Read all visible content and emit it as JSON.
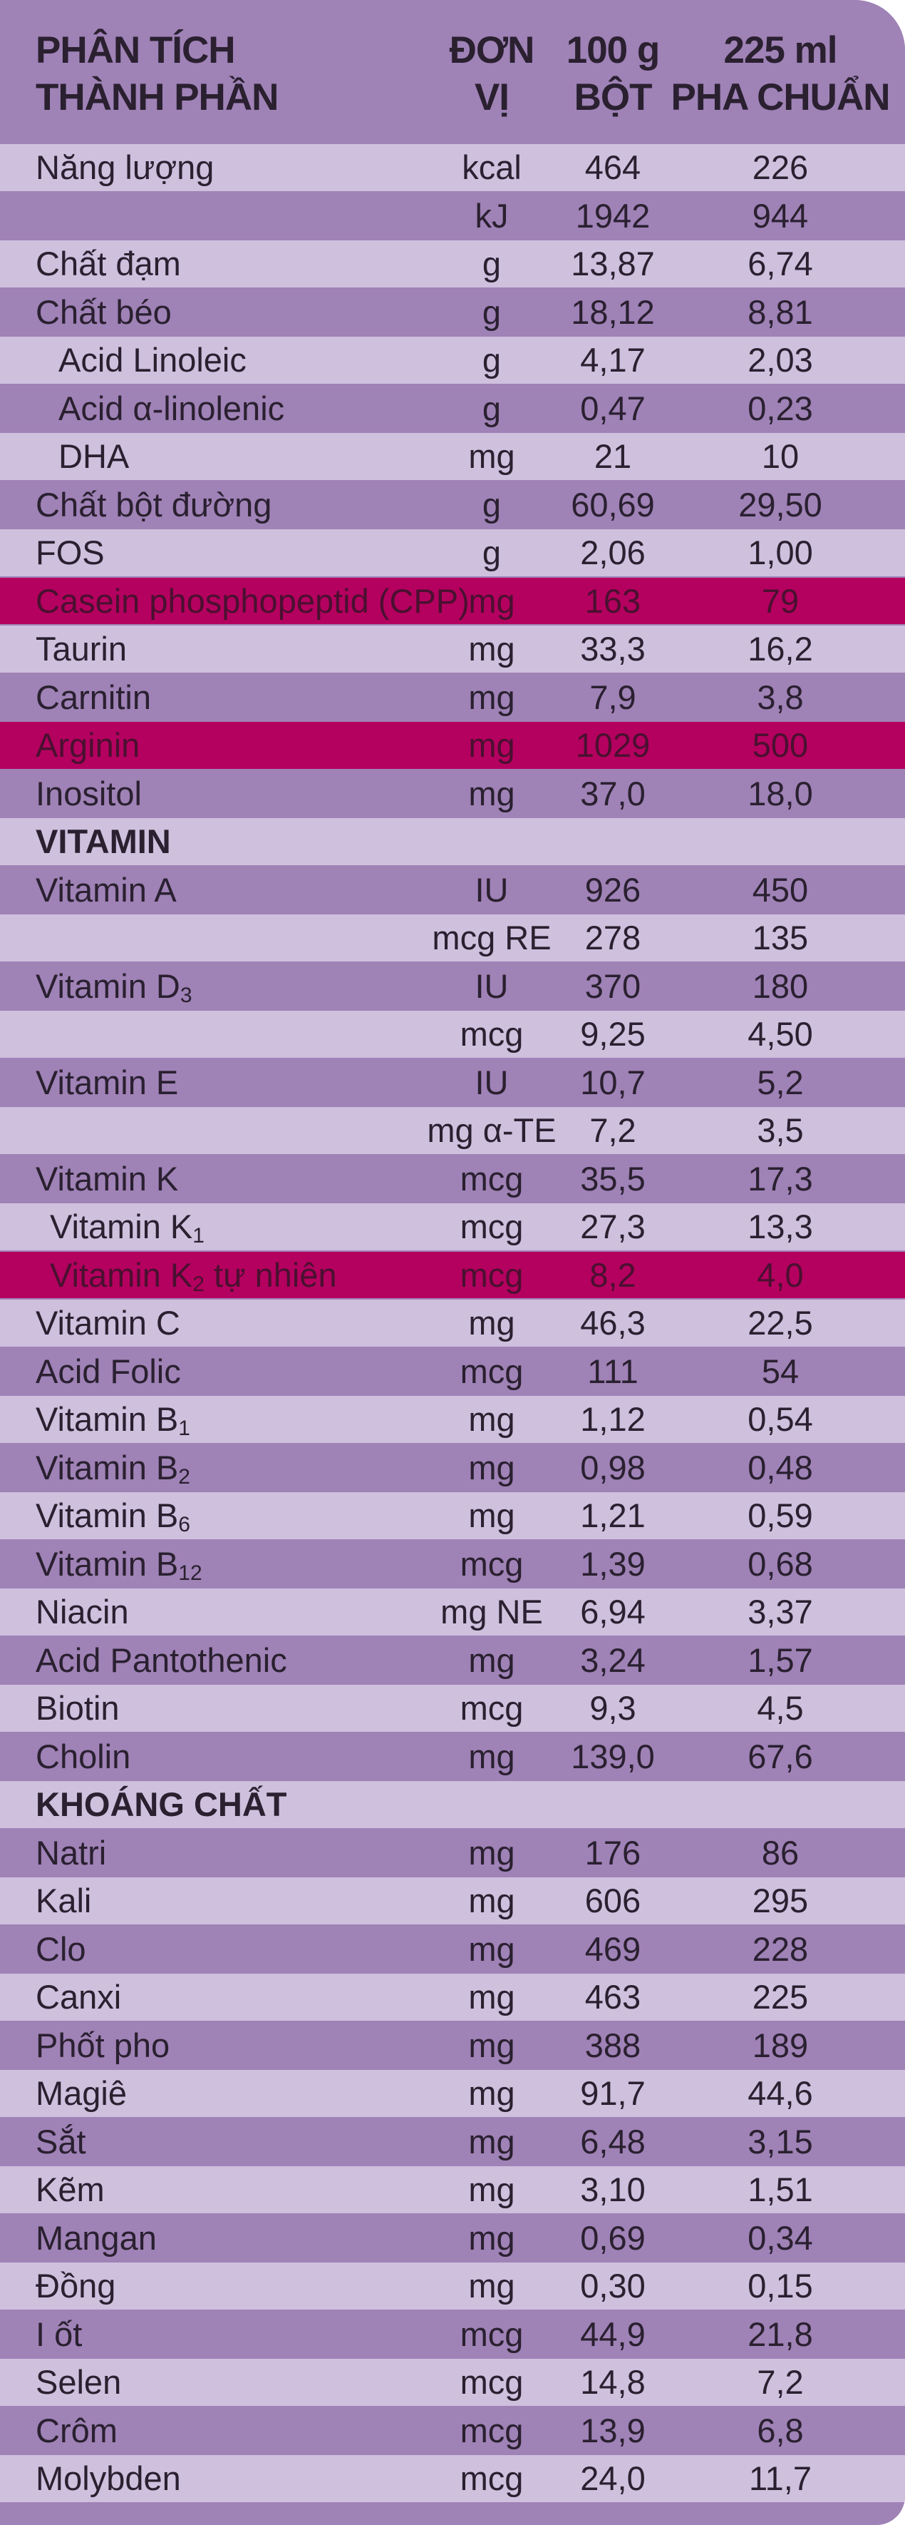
{
  "header": {
    "name_line1": "PHÂN TÍCH",
    "name_line2": "THÀNH PHẦN",
    "unit_line1": "ĐƠN",
    "unit_line2": "VỊ",
    "col100_line1": "100 g",
    "col100_line2": "BỘT",
    "col225_line1": "225 ml",
    "col225_line2": "PHA CHUẨN"
  },
  "colors": {
    "light_row": "#cfc0de",
    "dark_row": "#9f82b6",
    "highlight_row": "#b4005f"
  },
  "rows": [
    {
      "name": "Năng lượng",
      "unit": "kcal",
      "v100": "464",
      "v225": "226"
    },
    {
      "name": "",
      "unit": "kJ",
      "v100": "1942",
      "v225": "944"
    },
    {
      "name": "Chất đạm",
      "unit": "g",
      "v100": "13,87",
      "v225": "6,74"
    },
    {
      "name": "Chất béo",
      "unit": "g",
      "v100": "18,12",
      "v225": "8,81"
    },
    {
      "name": "Acid Linoleic",
      "unit": "g",
      "v100": "4,17",
      "v225": "2,03"
    },
    {
      "name": "Acid α-linolenic",
      "unit": "g",
      "v100": "0,47",
      "v225": "0,23"
    },
    {
      "name": "DHA",
      "unit": "mg",
      "v100": "21",
      "v225": "10"
    },
    {
      "name": "Chất bột đường",
      "unit": "g",
      "v100": "60,69",
      "v225": "29,50"
    },
    {
      "name": "FOS",
      "unit": "g",
      "v100": "2,06",
      "v225": "1,00"
    },
    {
      "name": "Casein phosphopeptid (CPP)",
      "unit": "mg",
      "v100": "163",
      "v225": "79"
    },
    {
      "name": "Taurin",
      "unit": "mg",
      "v100": "33,3",
      "v225": "16,2"
    },
    {
      "name": "Carnitin",
      "unit": "mg",
      "v100": "7,9",
      "v225": "3,8"
    },
    {
      "name": "Arginin",
      "unit": "mg",
      "v100": "1029",
      "v225": "500"
    },
    {
      "name": "Inositol",
      "unit": "mg",
      "v100": "37,0",
      "v225": "18,0"
    },
    {
      "name": "VITAMIN",
      "unit": "",
      "v100": "",
      "v225": ""
    },
    {
      "name": "Vitamin A",
      "unit": "IU",
      "v100": "926",
      "v225": "450"
    },
    {
      "name": "",
      "unit": "mcg RE",
      "v100": "278",
      "v225": "135"
    },
    {
      "name": "Vitamin D",
      "sub": "3",
      "unit": "IU",
      "v100": "370",
      "v225": "180"
    },
    {
      "name": "",
      "unit": "mcg",
      "v100": "9,25",
      "v225": "4,50"
    },
    {
      "name": "Vitamin E",
      "unit": "IU",
      "v100": "10,7",
      "v225": "5,2"
    },
    {
      "name": "",
      "unit": "mg α-TE",
      "v100": "7,2",
      "v225": "3,5"
    },
    {
      "name": "Vitamin K",
      "unit": "mcg",
      "v100": "35,5",
      "v225": "17,3"
    },
    {
      "name": "Vitamin K",
      "sub": "1",
      "unit": "mcg",
      "v100": "27,3",
      "v225": "13,3"
    },
    {
      "name": "Vitamin K",
      "sub": "2",
      "suffix": " tự nhiên",
      "unit": "mcg",
      "v100": "8,2",
      "v225": "4,0"
    },
    {
      "name": "Vitamin C",
      "unit": "mg",
      "v100": "46,3",
      "v225": "22,5"
    },
    {
      "name": "Acid Folic",
      "unit": "mcg",
      "v100": "111",
      "v225": "54"
    },
    {
      "name": "Vitamin B",
      "sub": "1",
      "unit": "mg",
      "v100": "1,12",
      "v225": "0,54"
    },
    {
      "name": "Vitamin B",
      "sub": "2",
      "unit": "mg",
      "v100": "0,98",
      "v225": "0,48"
    },
    {
      "name": "Vitamin B",
      "sub": "6",
      "unit": "mg",
      "v100": "1,21",
      "v225": "0,59"
    },
    {
      "name": "Vitamin B",
      "sub": "12",
      "unit": "mcg",
      "v100": "1,39",
      "v225": "0,68"
    },
    {
      "name": "Niacin",
      "unit": "mg NE",
      "v100": "6,94",
      "v225": "3,37"
    },
    {
      "name": "Acid Pantothenic",
      "unit": "mg",
      "v100": "3,24",
      "v225": "1,57"
    },
    {
      "name": "Biotin",
      "unit": "mcg",
      "v100": "9,3",
      "v225": "4,5"
    },
    {
      "name": "Cholin",
      "unit": "mg",
      "v100": "139,0",
      "v225": "67,6"
    },
    {
      "name": "KHOÁNG CHẤT",
      "unit": "",
      "v100": "",
      "v225": ""
    },
    {
      "name": "Natri",
      "unit": "mg",
      "v100": "176",
      "v225": "86"
    },
    {
      "name": "Kali",
      "unit": "mg",
      "v100": "606",
      "v225": "295"
    },
    {
      "name": "Clo",
      "unit": "mg",
      "v100": "469",
      "v225": "228"
    },
    {
      "name": "Canxi",
      "unit": "mg",
      "v100": "463",
      "v225": "225"
    },
    {
      "name": "Phốt pho",
      "unit": "mg",
      "v100": "388",
      "v225": "189"
    },
    {
      "name": "Magiê",
      "unit": "mg",
      "v100": "91,7",
      "v225": "44,6"
    },
    {
      "name": "Sắt",
      "unit": "mg",
      "v100": "6,48",
      "v225": "3,15"
    },
    {
      "name": "Kẽm",
      "unit": "mg",
      "v100": "3,10",
      "v225": "1,51"
    },
    {
      "name": "Mangan",
      "unit": "mg",
      "v100": "0,69",
      "v225": "0,34"
    },
    {
      "name": "Đồng",
      "unit": "mg",
      "v100": "0,30",
      "v225": "0,15"
    },
    {
      "name": "I ốt",
      "unit": "mcg",
      "v100": "44,9",
      "v225": "21,8"
    },
    {
      "name": "Selen",
      "unit": "mcg",
      "v100": "14,8",
      "v225": "7,2"
    },
    {
      "name": "Crôm",
      "unit": "mcg",
      "v100": "13,9",
      "v225": "6,8"
    },
    {
      "name": "Molybden",
      "unit": "mcg",
      "v100": "24,0",
      "v225": "11,7"
    }
  ]
}
